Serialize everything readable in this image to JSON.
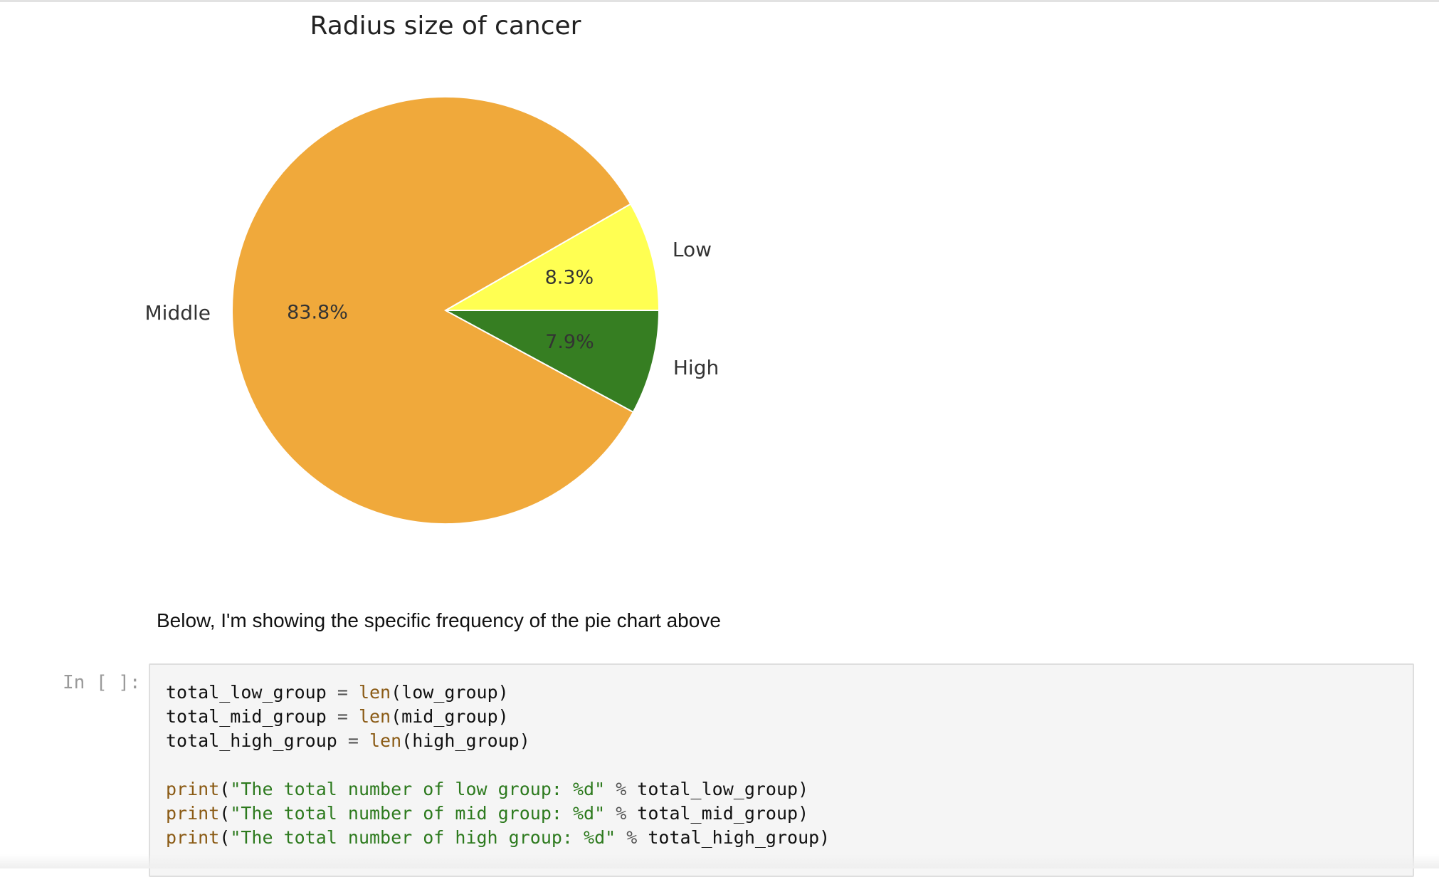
{
  "notebook": {
    "markdown_text": "Below, I'm showing the specific frequency of the pie chart above",
    "prompt_label": "In [ ]:"
  },
  "chart_data": {
    "type": "pie",
    "title": "Radius size of cancer",
    "slices": [
      {
        "label": "Low",
        "value": 8.3,
        "pct_label": "8.3%",
        "color": "#ffff52"
      },
      {
        "label": "Middle",
        "value": 83.8,
        "pct_label": "83.8%",
        "color": "#f0a93b"
      },
      {
        "label": "High",
        "value": 7.9,
        "pct_label": "7.9%",
        "color": "#367e22"
      }
    ],
    "start_angle_deg": 0,
    "direction": "counterclockwise",
    "edge_color": "#ffffff"
  },
  "code_cell": {
    "lines": [
      [
        {
          "t": "total_low_group "
        },
        {
          "t": "=",
          "c": "op"
        },
        {
          "t": " "
        },
        {
          "t": "len",
          "c": "builtin"
        },
        {
          "t": "(low_group)"
        }
      ],
      [
        {
          "t": "total_mid_group "
        },
        {
          "t": "=",
          "c": "op"
        },
        {
          "t": " "
        },
        {
          "t": "len",
          "c": "builtin"
        },
        {
          "t": "(mid_group)"
        }
      ],
      [
        {
          "t": "total_high_group "
        },
        {
          "t": "=",
          "c": "op"
        },
        {
          "t": " "
        },
        {
          "t": "len",
          "c": "builtin"
        },
        {
          "t": "(high_group)"
        }
      ],
      [],
      [
        {
          "t": "print",
          "c": "builtin"
        },
        {
          "t": "("
        },
        {
          "t": "\"The total number of low group: %d\"",
          "c": "string"
        },
        {
          "t": " "
        },
        {
          "t": "%",
          "c": "op"
        },
        {
          "t": " total_low_group)"
        }
      ],
      [
        {
          "t": "print",
          "c": "builtin"
        },
        {
          "t": "("
        },
        {
          "t": "\"The total number of mid group: %d\"",
          "c": "string"
        },
        {
          "t": " "
        },
        {
          "t": "%",
          "c": "op"
        },
        {
          "t": " total_mid_group)"
        }
      ],
      [
        {
          "t": "print",
          "c": "builtin"
        },
        {
          "t": "("
        },
        {
          "t": "\"The total number of high group: %d\"",
          "c": "string"
        },
        {
          "t": " "
        },
        {
          "t": "%",
          "c": "op"
        },
        {
          "t": " total_high_group)"
        }
      ]
    ]
  }
}
